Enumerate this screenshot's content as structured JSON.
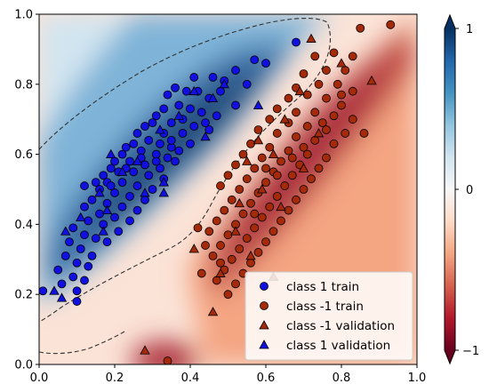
{
  "chart_data": {
    "type": "scatter",
    "title": "",
    "xlabel": "",
    "ylabel": "",
    "xlim": [
      0.0,
      1.0
    ],
    "ylim": [
      0.0,
      1.0
    ],
    "x_ticks": [
      "0.0",
      "0.2",
      "0.4",
      "0.6",
      "0.8",
      "1.0"
    ],
    "y_ticks": [
      "0.0",
      "0.2",
      "0.4",
      "0.6",
      "0.8",
      "1.0"
    ],
    "grid": false,
    "legend_position": "lower-right",
    "background": "filled contour of a decision function (RdBu colormap) with a dashed zero-level contour",
    "colorbar": {
      "range": [
        -1,
        1
      ],
      "tick_labels": [
        "1",
        "0",
        "−1"
      ],
      "colors": {
        "high": "#053061",
        "mid": "#f7f7f7",
        "low": "#67001f"
      }
    },
    "series": [
      {
        "name": "class 1 train",
        "marker": "circle",
        "color": "#1010e0",
        "points": [
          [
            0.68,
            0.92
          ],
          [
            0.57,
            0.87
          ],
          [
            0.6,
            0.86
          ],
          [
            0.52,
            0.84
          ],
          [
            0.46,
            0.82
          ],
          [
            0.41,
            0.82
          ],
          [
            0.55,
            0.8
          ],
          [
            0.49,
            0.81
          ],
          [
            0.42,
            0.78
          ],
          [
            0.39,
            0.78
          ],
          [
            0.36,
            0.79
          ],
          [
            0.34,
            0.77
          ],
          [
            0.45,
            0.76
          ],
          [
            0.48,
            0.78
          ],
          [
            0.52,
            0.74
          ],
          [
            0.37,
            0.74
          ],
          [
            0.33,
            0.73
          ],
          [
            0.31,
            0.71
          ],
          [
            0.4,
            0.73
          ],
          [
            0.43,
            0.72
          ],
          [
            0.47,
            0.71
          ],
          [
            0.35,
            0.69
          ],
          [
            0.3,
            0.69
          ],
          [
            0.28,
            0.68
          ],
          [
            0.26,
            0.66
          ],
          [
            0.33,
            0.66
          ],
          [
            0.38,
            0.66
          ],
          [
            0.41,
            0.68
          ],
          [
            0.45,
            0.67
          ],
          [
            0.29,
            0.64
          ],
          [
            0.32,
            0.63
          ],
          [
            0.35,
            0.62
          ],
          [
            0.25,
            0.63
          ],
          [
            0.23,
            0.62
          ],
          [
            0.27,
            0.61
          ],
          [
            0.31,
            0.6
          ],
          [
            0.34,
            0.59
          ],
          [
            0.37,
            0.61
          ],
          [
            0.4,
            0.63
          ],
          [
            0.22,
            0.6
          ],
          [
            0.2,
            0.58
          ],
          [
            0.24,
            0.58
          ],
          [
            0.28,
            0.57
          ],
          [
            0.32,
            0.56
          ],
          [
            0.36,
            0.58
          ],
          [
            0.19,
            0.56
          ],
          [
            0.21,
            0.55
          ],
          [
            0.25,
            0.55
          ],
          [
            0.29,
            0.54
          ],
          [
            0.33,
            0.53
          ],
          [
            0.17,
            0.54
          ],
          [
            0.15,
            0.52
          ],
          [
            0.18,
            0.52
          ],
          [
            0.22,
            0.52
          ],
          [
            0.26,
            0.51
          ],
          [
            0.3,
            0.5
          ],
          [
            0.12,
            0.51
          ],
          [
            0.16,
            0.5
          ],
          [
            0.2,
            0.49
          ],
          [
            0.24,
            0.48
          ],
          [
            0.28,
            0.47
          ],
          [
            0.14,
            0.47
          ],
          [
            0.18,
            0.46
          ],
          [
            0.22,
            0.45
          ],
          [
            0.26,
            0.44
          ],
          [
            0.12,
            0.45
          ],
          [
            0.16,
            0.43
          ],
          [
            0.2,
            0.42
          ],
          [
            0.24,
            0.41
          ],
          [
            0.13,
            0.41
          ],
          [
            0.17,
            0.4
          ],
          [
            0.21,
            0.38
          ],
          [
            0.09,
            0.39
          ],
          [
            0.12,
            0.37
          ],
          [
            0.15,
            0.36
          ],
          [
            0.18,
            0.35
          ],
          [
            0.08,
            0.35
          ],
          [
            0.11,
            0.33
          ],
          [
            0.14,
            0.31
          ],
          [
            0.07,
            0.31
          ],
          [
            0.1,
            0.29
          ],
          [
            0.13,
            0.28
          ],
          [
            0.05,
            0.27
          ],
          [
            0.09,
            0.25
          ],
          [
            0.12,
            0.24
          ],
          [
            0.06,
            0.23
          ],
          [
            0.1,
            0.21
          ],
          [
            0.01,
            0.21
          ],
          [
            0.1,
            0.18
          ],
          [
            0.44,
            0.69
          ],
          [
            0.27,
            0.59
          ],
          [
            0.31,
            0.58
          ],
          [
            0.23,
            0.56
          ],
          [
            0.38,
            0.7
          ],
          [
            0.35,
            0.64
          ],
          [
            0.19,
            0.51
          ]
        ]
      },
      {
        "name": "class -1 train",
        "marker": "circle",
        "color": "#a52a0a",
        "points": [
          [
            0.85,
            0.96
          ],
          [
            0.93,
            0.97
          ],
          [
            0.78,
            0.89
          ],
          [
            0.83,
            0.88
          ],
          [
            0.73,
            0.88
          ],
          [
            0.76,
            0.84
          ],
          [
            0.81,
            0.84
          ],
          [
            0.7,
            0.83
          ],
          [
            0.74,
            0.8
          ],
          [
            0.79,
            0.8
          ],
          [
            0.68,
            0.79
          ],
          [
            0.83,
            0.78
          ],
          [
            0.66,
            0.76
          ],
          [
            0.71,
            0.77
          ],
          [
            0.76,
            0.76
          ],
          [
            0.8,
            0.74
          ],
          [
            0.63,
            0.73
          ],
          [
            0.68,
            0.72
          ],
          [
            0.73,
            0.72
          ],
          [
            0.78,
            0.71
          ],
          [
            0.83,
            0.7
          ],
          [
            0.61,
            0.7
          ],
          [
            0.66,
            0.69
          ],
          [
            0.71,
            0.68
          ],
          [
            0.76,
            0.67
          ],
          [
            0.81,
            0.66
          ],
          [
            0.86,
            0.66
          ],
          [
            0.58,
            0.67
          ],
          [
            0.63,
            0.66
          ],
          [
            0.68,
            0.65
          ],
          [
            0.73,
            0.64
          ],
          [
            0.78,
            0.63
          ],
          [
            0.56,
            0.63
          ],
          [
            0.61,
            0.62
          ],
          [
            0.66,
            0.61
          ],
          [
            0.71,
            0.6
          ],
          [
            0.76,
            0.59
          ],
          [
            0.54,
            0.6
          ],
          [
            0.59,
            0.59
          ],
          [
            0.64,
            0.58
          ],
          [
            0.69,
            0.57
          ],
          [
            0.74,
            0.56
          ],
          [
            0.52,
            0.57
          ],
          [
            0.57,
            0.56
          ],
          [
            0.62,
            0.55
          ],
          [
            0.67,
            0.54
          ],
          [
            0.72,
            0.53
          ],
          [
            0.5,
            0.54
          ],
          [
            0.55,
            0.53
          ],
          [
            0.6,
            0.52
          ],
          [
            0.65,
            0.51
          ],
          [
            0.7,
            0.5
          ],
          [
            0.48,
            0.51
          ],
          [
            0.53,
            0.5
          ],
          [
            0.58,
            0.49
          ],
          [
            0.63,
            0.48
          ],
          [
            0.68,
            0.47
          ],
          [
            0.51,
            0.47
          ],
          [
            0.56,
            0.46
          ],
          [
            0.61,
            0.45
          ],
          [
            0.66,
            0.44
          ],
          [
            0.49,
            0.44
          ],
          [
            0.54,
            0.43
          ],
          [
            0.59,
            0.42
          ],
          [
            0.64,
            0.41
          ],
          [
            0.47,
            0.41
          ],
          [
            0.52,
            0.4
          ],
          [
            0.57,
            0.39
          ],
          [
            0.62,
            0.38
          ],
          [
            0.45,
            0.38
          ],
          [
            0.5,
            0.37
          ],
          [
            0.55,
            0.36
          ],
          [
            0.6,
            0.35
          ],
          [
            0.48,
            0.34
          ],
          [
            0.53,
            0.33
          ],
          [
            0.58,
            0.32
          ],
          [
            0.46,
            0.31
          ],
          [
            0.51,
            0.3
          ],
          [
            0.56,
            0.29
          ],
          [
            0.49,
            0.27
          ],
          [
            0.54,
            0.26
          ],
          [
            0.47,
            0.24
          ],
          [
            0.52,
            0.23
          ],
          [
            0.5,
            0.2
          ],
          [
            0.42,
            0.39
          ],
          [
            0.44,
            0.34
          ],
          [
            0.48,
            0.29
          ],
          [
            0.43,
            0.26
          ],
          [
            0.63,
            0.54
          ],
          [
            0.7,
            0.62
          ],
          [
            0.75,
            0.69
          ],
          [
            0.8,
            0.77
          ],
          [
            0.57,
            0.43
          ],
          [
            0.6,
            0.56
          ],
          [
            0.67,
            0.59
          ],
          [
            0.34,
            0.01
          ]
        ]
      },
      {
        "name": "class -1 validation",
        "marker": "triangle",
        "color": "#a52a0a",
        "points": [
          [
            0.72,
            0.93
          ],
          [
            0.88,
            0.81
          ],
          [
            0.8,
            0.86
          ],
          [
            0.69,
            0.78
          ],
          [
            0.65,
            0.7
          ],
          [
            0.74,
            0.66
          ],
          [
            0.58,
            0.64
          ],
          [
            0.62,
            0.6
          ],
          [
            0.55,
            0.58
          ],
          [
            0.7,
            0.56
          ],
          [
            0.59,
            0.5
          ],
          [
            0.53,
            0.46
          ],
          [
            0.64,
            0.45
          ],
          [
            0.52,
            0.38
          ],
          [
            0.56,
            0.31
          ],
          [
            0.48,
            0.26
          ],
          [
            0.41,
            0.33
          ],
          [
            0.46,
            0.15
          ],
          [
            0.62,
            0.25
          ],
          [
            0.28,
            0.04
          ]
        ]
      },
      {
        "name": "class 1 validation",
        "marker": "triangle",
        "color": "#1010e0",
        "points": [
          [
            0.58,
            0.74
          ],
          [
            0.37,
            0.71
          ],
          [
            0.46,
            0.76
          ],
          [
            0.44,
            0.65
          ],
          [
            0.32,
            0.67
          ],
          [
            0.26,
            0.58
          ],
          [
            0.33,
            0.49
          ],
          [
            0.22,
            0.55
          ],
          [
            0.18,
            0.44
          ],
          [
            0.11,
            0.42
          ],
          [
            0.07,
            0.38
          ],
          [
            0.17,
            0.38
          ],
          [
            0.04,
            0.21
          ],
          [
            0.06,
            0.19
          ],
          [
            0.19,
            0.6
          ],
          [
            0.33,
            0.52
          ],
          [
            0.16,
            0.49
          ],
          [
            0.41,
            0.78
          ],
          [
            0.28,
            0.49
          ],
          [
            0.49,
            0.8
          ]
        ]
      }
    ]
  }
}
